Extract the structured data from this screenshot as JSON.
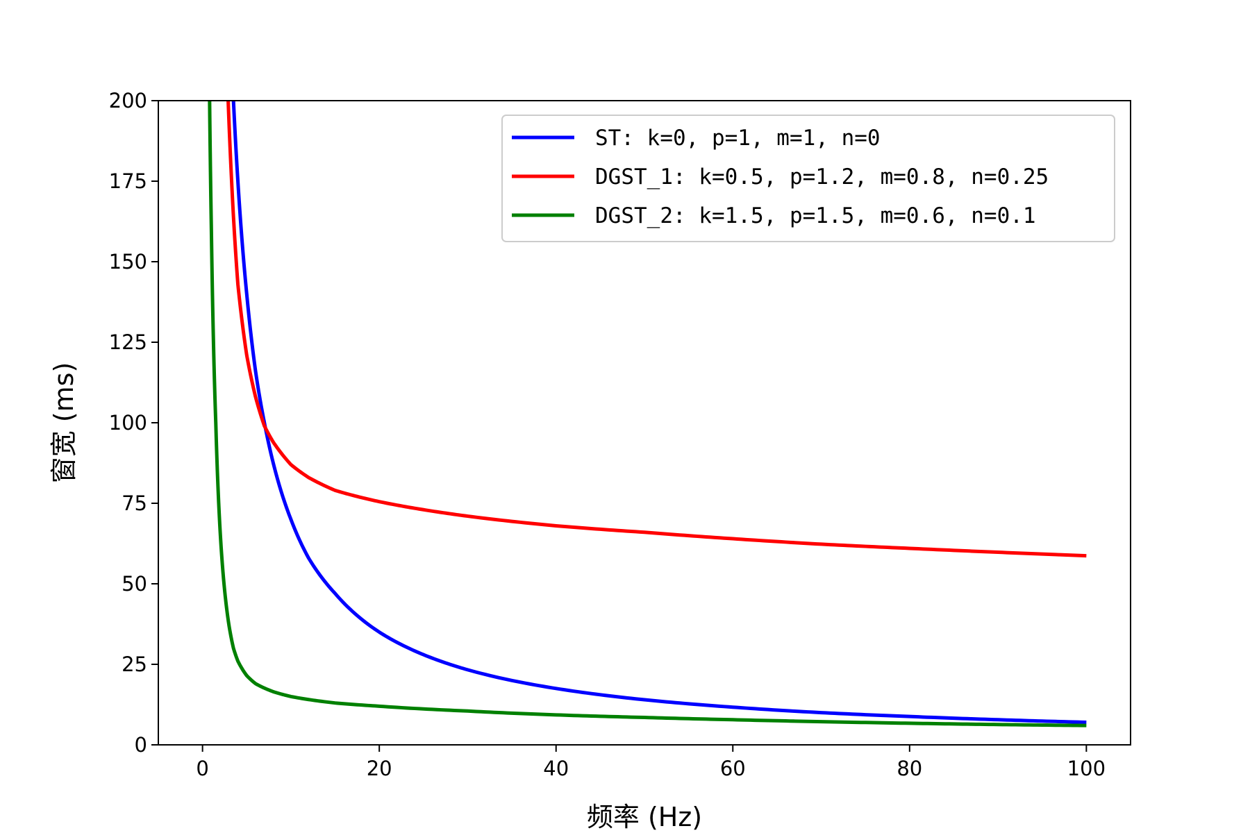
{
  "chart_data": {
    "type": "line",
    "xlabel": "频率 (Hz)",
    "ylabel": "窗宽 (ms)",
    "xlim": [
      -5,
      105
    ],
    "ylim": [
      0,
      200
    ],
    "xticks": [
      0,
      20,
      40,
      60,
      80,
      100
    ],
    "yticks": [
      0,
      25,
      50,
      75,
      100,
      125,
      150,
      175,
      200
    ],
    "grid": false,
    "legend_position": "top-right",
    "series": [
      {
        "name": "ST: k=0, p=1, m=1, n=0",
        "color": "#0000ff",
        "x": [
          3.5,
          4,
          5,
          6,
          7,
          8,
          10,
          12,
          15,
          20,
          25,
          30,
          40,
          50,
          60,
          70,
          80,
          90,
          100
        ],
        "y": [
          200,
          175,
          140,
          116,
          100,
          87.5,
          70,
          58,
          47,
          35,
          28,
          23.3,
          17.5,
          14,
          11.7,
          10,
          8.8,
          7.8,
          7
        ]
      },
      {
        "name": "DGST_1: k=0.5, p=1.2, m=0.8, n=0.25",
        "color": "#ff0000",
        "x": [
          2.9,
          3.5,
          4,
          5,
          6,
          7,
          8,
          10,
          12,
          15,
          20,
          25,
          30,
          40,
          50,
          60,
          70,
          80,
          90,
          100
        ],
        "y": [
          200,
          164,
          143,
          121,
          108,
          99,
          94,
          87,
          83,
          79,
          75.5,
          73,
          71,
          68,
          66,
          64,
          62.3,
          61,
          59.8,
          58.7
        ]
      },
      {
        "name": "DGST_2: k=1.5, p=1.5, m=0.6, n=0.1",
        "color": "#008000",
        "x": [
          0.8,
          1,
          1.5,
          2,
          2.5,
          3,
          3.5,
          4,
          5,
          6,
          8,
          10,
          15,
          20,
          30,
          40,
          50,
          60,
          70,
          80,
          90,
          100
        ],
        "y": [
          200,
          160,
          100,
          66,
          48,
          37,
          30,
          26,
          21.5,
          19,
          16.5,
          15,
          13,
          12,
          10.5,
          9.3,
          8.5,
          7.8,
          7.2,
          6.7,
          6.3,
          6
        ]
      }
    ]
  }
}
